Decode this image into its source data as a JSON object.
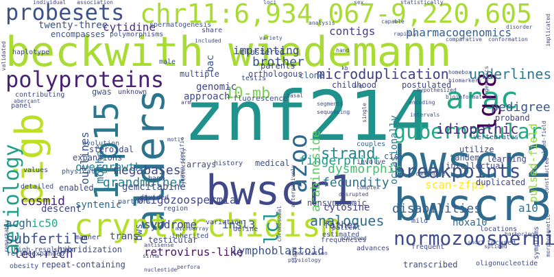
{
  "words": [
    {
      "text": "beckwith wiedemann",
      "color": "#a8db34"
    },
    {
      "text": "znf214",
      "color": "#20928c"
    },
    {
      "text": "chr11:6,934,067-9,220,605",
      "color": "#a8db34"
    },
    {
      "text": "alders",
      "color": "#2c738e"
    },
    {
      "text": "bwscr2",
      "color": "#2e6e8e"
    },
    {
      "text": "bwscr3",
      "color": "#2f6b8e"
    },
    {
      "text": "bwscr1",
      "color": "#3f4889"
    },
    {
      "text": "cryptorchidism",
      "color": "#b5de2b"
    },
    {
      "text": "11p15",
      "color": "#2a788e"
    },
    {
      "text": "pigb",
      "color": "#bddf26"
    },
    {
      "text": "probesets",
      "color": "#3b528b"
    },
    {
      "text": "polyproteins",
      "color": "#482173"
    },
    {
      "text": "arac",
      "color": "#22a785"
    },
    {
      "text": "lgr8",
      "color": "#440154"
    },
    {
      "text": "azoo",
      "color": "#31688e"
    },
    {
      "text": "aetiology",
      "color": "#1f9e89"
    },
    {
      "text": "gubernacular",
      "color": "#22a884"
    },
    {
      "text": "breakpoints",
      "color": "#3b528b"
    },
    {
      "text": "normozoospermia",
      "color": "#3e4a89"
    },
    {
      "text": "10-mb",
      "color": "#7ad151"
    },
    {
      "text": "twenty-three",
      "color": "#3a548c"
    },
    {
      "text": "cytidine",
      "color": "#46327e"
    },
    {
      "text": "imprinting",
      "color": "#3e4989"
    },
    {
      "text": "contigs",
      "color": "#433e85"
    },
    {
      "text": "pharmacogenomics",
      "color": "#35608d"
    },
    {
      "text": "microduplication",
      "color": "#424086"
    },
    {
      "text": "underlines",
      "color": "#2a788e"
    },
    {
      "text": "idiopathic",
      "color": "#472c7a"
    },
    {
      "text": "pedigree",
      "color": "#38588c"
    },
    {
      "text": "strand",
      "color": "#25848e"
    },
    {
      "text": "megabases",
      "color": "#3f4788"
    },
    {
      "text": "grandmother",
      "color": "#277f8e"
    },
    {
      "text": "fingerprint",
      "color": "#1f998a"
    },
    {
      "text": "scan-zfps",
      "color": "#fde725"
    },
    {
      "text": "dysmorphic",
      "color": "#44bf70"
    },
    {
      "text": "fecundity",
      "color": "#2c728e"
    },
    {
      "text": "oligozoospermia",
      "color": "#3f4889"
    },
    {
      "text": "gemcitabine",
      "color": "#3d4e8a"
    },
    {
      "text": "arabinoside",
      "color": "#5ec962"
    },
    {
      "text": "cosmid",
      "color": "#482979"
    },
    {
      "text": "acgh",
      "color": "#31668e"
    },
    {
      "text": "ic50",
      "color": "#22a884"
    },
    {
      "text": "syndrome",
      "color": "#3f4889"
    },
    {
      "text": "insl3",
      "color": "#39568c"
    },
    {
      "text": "lcl",
      "color": "#21918c"
    },
    {
      "text": "subfertile",
      "color": "#3b528b"
    },
    {
      "text": "leu-rich",
      "color": "#46307e"
    },
    {
      "text": "retrovirus-like",
      "color": "#471365"
    },
    {
      "text": "lymphoblastoid",
      "color": "#3c508b"
    },
    {
      "text": "analogues",
      "color": "#2f6c8e"
    },
    {
      "text": "cytosine",
      "color": "#433d84"
    },
    {
      "text": "father",
      "color": "#414287"
    },
    {
      "text": "disabilities",
      "color": "#355f8d"
    },
    {
      "text": "hoxa10",
      "color": "#33638d"
    },
    {
      "text": "a10",
      "color": "#2d708e"
    },
    {
      "text": "pulsed-field",
      "color": "#95d840"
    },
    {
      "text": "overgrowth",
      "color": "#26828e"
    },
    {
      "text": "outlines",
      "color": "#3a548c"
    },
    {
      "text": "mother",
      "color": "#2c728e"
    },
    {
      "text": "syntenic",
      "color": "#31668e"
    },
    {
      "text": "trans",
      "color": "#404588"
    },
    {
      "text": "bws",
      "color": "#3a548c"
    },
    {
      "text": "descent",
      "color": "#404588"
    },
    {
      "text": "brother",
      "color": "#3b528b"
    },
    {
      "text": "genomic",
      "color": "#414487"
    },
    {
      "text": "bac",
      "color": "#39568c"
    },
    {
      "text": "approach",
      "color": "#3f4889"
    },
    {
      "text": "fluorescence",
      "color": "#3b528b"
    },
    {
      "text": "orthologous",
      "color": "#3e4a89"
    },
    {
      "text": "clone",
      "color": "#33638d"
    },
    {
      "text": "childhood",
      "color": "#404588"
    },
    {
      "text": "postulated",
      "color": "#3f4788"
    },
    {
      "text": "proband",
      "color": "#424086"
    },
    {
      "text": "occasionally",
      "color": "#2a788e"
    },
    {
      "text": "spermatogenesis",
      "color": "#3b528b"
    },
    {
      "text": "share",
      "color": "#414487"
    },
    {
      "text": "parents",
      "color": "#404588"
    },
    {
      "text": "clustered",
      "color": "#3b528b"
    },
    {
      "text": "testis",
      "color": "#3e4a89"
    },
    {
      "text": "multiple",
      "color": "#3f4889"
    },
    {
      "text": "unknown",
      "color": "#424086"
    },
    {
      "text": "gwas",
      "color": "#3b528b"
    },
    {
      "text": "steroidal",
      "color": "#404588"
    },
    {
      "text": "evolution",
      "color": "#39568c"
    },
    {
      "text": "expansions",
      "color": "#3e4a89"
    },
    {
      "text": "enabled",
      "color": "#3f4889"
    },
    {
      "text": "tandem",
      "color": "#3b528b"
    },
    {
      "text": "intellectual",
      "color": "#3e4a89"
    },
    {
      "text": "learning",
      "color": "#3f4889"
    },
    {
      "text": "vertebrates",
      "color": "#39568c"
    },
    {
      "text": "duplicated",
      "color": "#404588"
    },
    {
      "text": "utilize",
      "color": "#3f4788"
    },
    {
      "text": "cis",
      "color": "#3b528b"
    },
    {
      "text": "involve",
      "color": "#404588"
    },
    {
      "text": "couples",
      "color": "#31668e"
    },
    {
      "text": "hybridization",
      "color": "#3e4a89"
    },
    {
      "text": "testicular",
      "color": "#3f4889"
    },
    {
      "text": "medical",
      "color": "#3b528b"
    },
    {
      "text": "history",
      "color": "#404588"
    },
    {
      "text": "arrays",
      "color": "#3f4889"
    },
    {
      "text": "band",
      "color": "#3b528b"
    },
    {
      "text": "nonsyndromic",
      "color": "#3e4a89"
    },
    {
      "text": "mild",
      "color": "#3f4889"
    },
    {
      "text": "locations",
      "color": "#404588"
    },
    {
      "text": "focused",
      "color": "#3b528b"
    },
    {
      "text": "symptoms",
      "color": "#3e4a89"
    },
    {
      "text": "frequent",
      "color": "#3f4889"
    },
    {
      "text": "haplotype",
      "color": "#404588"
    },
    {
      "text": "encompasses",
      "color": "#3b528b"
    },
    {
      "text": "polymorphisms",
      "color": "#3e4a89"
    },
    {
      "text": "repeat-containing",
      "color": "#3f4889"
    },
    {
      "text": "high-resolution",
      "color": "#3b528b"
    },
    {
      "text": "refined",
      "color": "#3e4a89"
    },
    {
      "text": "values",
      "color": "#3f4889"
    },
    {
      "text": "physical",
      "color": "#3b528b"
    },
    {
      "text": "contributing",
      "color": "#404588"
    },
    {
      "text": "panel",
      "color": "#3e4a89"
    },
    {
      "text": "detailed",
      "color": "#3f4889"
    },
    {
      "text": "partners",
      "color": "#3b528b"
    },
    {
      "text": "divided",
      "color": "#404588"
    },
    {
      "text": "region",
      "color": "#3e4a89"
    },
    {
      "text": "frequencies",
      "color": "#3f4889"
    },
    {
      "text": "inherited",
      "color": "#3b528b"
    },
    {
      "text": "variation",
      "color": "#404588"
    },
    {
      "text": "define",
      "color": "#3e4a89"
    },
    {
      "text": "estimated",
      "color": "#3f4889"
    },
    {
      "text": "patient",
      "color": "#3b528b"
    },
    {
      "text": "advances",
      "color": "#404588"
    },
    {
      "text": "transcribed",
      "color": "#3e4a89"
    },
    {
      "text": "oligonucleotide",
      "color": "#3f4889"
    },
    {
      "text": "obesity",
      "color": "#3b528b"
    },
    {
      "text": "manner",
      "color": "#404588"
    },
    {
      "text": "expanded",
      "color": "#3e4a89"
    },
    {
      "text": "nucleotide",
      "color": "#3f4889"
    },
    {
      "text": "male",
      "color": "#3b528b"
    },
    {
      "text": "individual",
      "color": "#404588"
    },
    {
      "text": "association",
      "color": "#3e4a89"
    },
    {
      "text": "loci",
      "color": "#3f4889"
    },
    {
      "text": "sex",
      "color": "#3b528b"
    },
    {
      "text": "statistically",
      "color": "#404588"
    },
    {
      "text": "capable",
      "color": "#3e4a89"
    },
    {
      "text": "rapidly",
      "color": "#3f4889"
    },
    {
      "text": "disorder",
      "color": "#3b528b"
    },
    {
      "text": "implicated",
      "color": "#404588"
    },
    {
      "text": "comparative",
      "color": "#3e4a89"
    },
    {
      "text": "conformation",
      "color": "#3f4889"
    },
    {
      "text": "variety",
      "color": "#3b528b"
    },
    {
      "text": "included",
      "color": "#404588"
    },
    {
      "text": "validated",
      "color": "#3e4a89"
    },
    {
      "text": "analysis",
      "color": "#3f4889"
    },
    {
      "text": "hand",
      "color": "#3b528b"
    },
    {
      "text": "kb",
      "color": "#404588"
    },
    {
      "text": "homebox",
      "color": "#3e4a89"
    },
    {
      "text": "biomarkers",
      "color": "#3f4889"
    },
    {
      "text": "genetics",
      "color": "#3b528b"
    },
    {
      "text": "hypothesized",
      "color": "#404588"
    },
    {
      "text": "snp",
      "color": "#3e4a89"
    },
    {
      "text": "bioinformatics",
      "color": "#3f4889"
    },
    {
      "text": "intervals",
      "color": "#3b528b"
    },
    {
      "text": "encoding",
      "color": "#404588"
    },
    {
      "text": "pulsed-field",
      "color": "#3e4a89"
    },
    {
      "text": "constructed",
      "color": "#3f4889"
    },
    {
      "text": "segments",
      "color": "#3b528b"
    },
    {
      "text": "sequencing",
      "color": "#404588"
    },
    {
      "text": "single",
      "color": "#3e4a89"
    },
    {
      "text": "basal",
      "color": "#3f4889"
    },
    {
      "text": "human-specific",
      "color": "#3b528b"
    },
    {
      "text": "arm",
      "color": "#404588"
    },
    {
      "text": "cytotoxicity",
      "color": "#3e4a89"
    },
    {
      "text": "alternatively",
      "color": "#3f4889"
    },
    {
      "text": "chromosomal",
      "color": "#3b528b"
    },
    {
      "text": "achieved",
      "color": "#404588"
    },
    {
      "text": "complex",
      "color": "#3e4a89"
    },
    {
      "text": "disrupted",
      "color": "#3f4889"
    },
    {
      "text": "candidate",
      "color": "#3b528b"
    },
    {
      "text": "spliced",
      "color": "#404588"
    },
    {
      "text": "harboring",
      "color": "#3e4a89"
    },
    {
      "text": "morphogenetic",
      "color": "#3f4889"
    },
    {
      "text": "short",
      "color": "#3b528b"
    },
    {
      "text": "dimerization",
      "color": "#404588"
    },
    {
      "text": "physiology",
      "color": "#3e4a89"
    },
    {
      "text": "lipid",
      "color": "#3f4889"
    },
    {
      "text": "microarray",
      "color": "#3b528b"
    },
    {
      "text": "antisense",
      "color": "#404588"
    },
    {
      "text": "sirna",
      "color": "#3e4a89"
    },
    {
      "text": "perfora",
      "color": "#3f4889"
    },
    {
      "text": "aberrant",
      "color": "#3b528b"
    },
    {
      "text": "remarkably",
      "color": "#404588"
    },
    {
      "text": "motif",
      "color": "#3e4a89"
    }
  ]
}
